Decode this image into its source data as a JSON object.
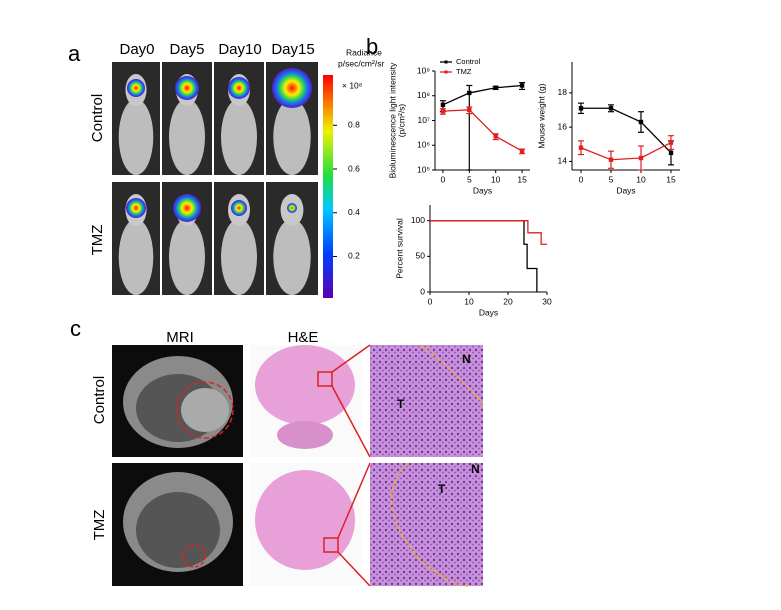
{
  "panel_labels": [
    "a",
    "b",
    "c"
  ],
  "panel_a": {
    "columns": [
      "Day0",
      "Day5",
      "Day10",
      "Day15"
    ],
    "rows": [
      "Control",
      "TMZ"
    ],
    "colorbar": {
      "title": "Radiance",
      "unit": "p/sec/cm²/sr",
      "multiplier": "× 10⁸",
      "ylim": [
        0.01,
        1.03
      ],
      "yticks": [
        0.2,
        0.4,
        0.6,
        0.8
      ]
    }
  },
  "chart_data": [
    {
      "type": "line",
      "y_label": "Bioluminescence light intensity",
      "y_label_unit": "(p/cm²/s)",
      "x_label": "Days",
      "x": [
        0,
        5,
        10,
        15
      ],
      "xlim": [
        -1.5,
        16.5
      ],
      "xticks": [
        0,
        5,
        10,
        15
      ],
      "log_y": true,
      "ylim": [
        100000,
        1000000000
      ],
      "yticks": [
        {
          "value": 100000,
          "label": "10⁵"
        },
        {
          "value": 1000000,
          "label": "10⁶"
        },
        {
          "value": 10000000,
          "label": "10⁷"
        },
        {
          "value": 100000000,
          "label": "10⁸"
        },
        {
          "value": 1000000000,
          "label": "10⁹"
        }
      ],
      "legend": "top-left",
      "series": [
        {
          "name": "Control",
          "color": "#000000",
          "values": [
            43000000,
            130000000,
            210000000,
            260000000
          ],
          "errors": [
            20000000,
            130000000,
            30000000,
            80000000
          ]
        },
        {
          "name": "TMZ",
          "color": "#e02020",
          "values": [
            24000000,
            27000000,
            2300000,
            580000
          ],
          "errors": [
            6000000,
            8000000,
            600000,
            120000
          ]
        }
      ]
    },
    {
      "type": "line",
      "y_label": "Mouse weight (g)",
      "x_label": "Days",
      "x": [
        0,
        5,
        10,
        15
      ],
      "xlim": [
        -1.5,
        16.5
      ],
      "xticks": [
        0,
        5,
        10,
        15
      ],
      "ylim": [
        13.5,
        19.8
      ],
      "yticks": [
        14,
        16,
        18
      ],
      "series": [
        {
          "color": "#000000",
          "values": [
            17.1,
            17.1,
            16.3,
            14.5
          ],
          "errors": [
            0.3,
            0.2,
            0.6,
            0.7
          ]
        },
        {
          "color": "#e02020",
          "values": [
            14.8,
            14.1,
            14.2,
            15.1
          ],
          "errors": [
            0.4,
            0.5,
            0.7,
            0.4
          ]
        }
      ]
    },
    {
      "type": "step",
      "y_label": "Percent survival",
      "x_label": "Days",
      "xlim": [
        0,
        30
      ],
      "xticks": [
        0,
        10,
        20,
        30
      ],
      "ylim": [
        0,
        122
      ],
      "yticks": [
        0,
        50,
        100
      ],
      "series": [
        {
          "color": "#000000",
          "x": [
            0,
            24.1,
            24.9,
            27.4
          ],
          "values": [
            100,
            67,
            33,
            0
          ]
        },
        {
          "color": "#e02020",
          "x": [
            0,
            25.1,
            28.5,
            30
          ],
          "values": [
            100,
            83,
            67,
            67
          ]
        }
      ]
    }
  ],
  "panel_c": {
    "columns": [
      "MRI",
      "H&E"
    ],
    "rows": [
      "Control",
      "TMZ"
    ],
    "annotations": [
      "T",
      "N",
      "T",
      "N"
    ]
  }
}
